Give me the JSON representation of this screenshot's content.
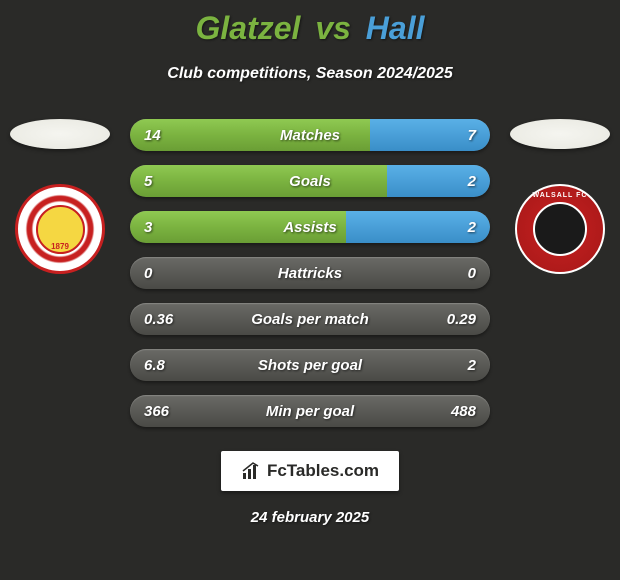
{
  "title": {
    "left": "Glatzel",
    "vs": "vs",
    "right": "Hall"
  },
  "subtitle": "Club competitions, Season 2024/2025",
  "colors": {
    "left_accent": "#7bb340",
    "right_accent": "#4a9fd8",
    "background": "#2a2a28",
    "bar_base": "#5a5a56"
  },
  "stats": [
    {
      "label": "Matches",
      "left_value": "14",
      "right_value": "7",
      "left_pct": 66.7,
      "right_pct": 33.3
    },
    {
      "label": "Goals",
      "left_value": "5",
      "right_value": "2",
      "left_pct": 71.4,
      "right_pct": 28.6
    },
    {
      "label": "Assists",
      "left_value": "3",
      "right_value": "2",
      "left_pct": 60,
      "right_pct": 40
    },
    {
      "label": "Hattricks",
      "left_value": "0",
      "right_value": "0",
      "left_pct": 0,
      "right_pct": 0
    },
    {
      "label": "Goals per match",
      "left_value": "0.36",
      "right_value": "0.29",
      "left_pct": 0,
      "right_pct": 0
    },
    {
      "label": "Shots per goal",
      "left_value": "6.8",
      "right_value": "2",
      "left_pct": 0,
      "right_pct": 0
    },
    {
      "label": "Min per goal",
      "left_value": "366",
      "right_value": "488",
      "left_pct": 0,
      "right_pct": 0
    }
  ],
  "brand": "FcTables.com",
  "date": "24 february 2025",
  "clubs": {
    "left": "Swindon Town",
    "right": "Walsall FC"
  }
}
